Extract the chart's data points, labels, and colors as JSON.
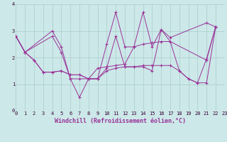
{
  "xlabel": "Windchill (Refroidissement éolien,°C)",
  "xlim": [
    0,
    23
  ],
  "ylim": [
    0,
    4
  ],
  "xticks": [
    0,
    1,
    2,
    3,
    4,
    5,
    6,
    7,
    8,
    9,
    10,
    11,
    12,
    13,
    14,
    15,
    16,
    17,
    18,
    19,
    20,
    21,
    22,
    23
  ],
  "yticks": [
    0,
    1,
    2,
    3,
    4
  ],
  "background_color": "#cce8e8",
  "grid_color": "#aacccc",
  "line_color": "#993399",
  "lines": [
    {
      "x": [
        0,
        1,
        4,
        5,
        6,
        7,
        8,
        9,
        10,
        11,
        12,
        13,
        14,
        15,
        16,
        17,
        21,
        22
      ],
      "y": [
        2.8,
        2.2,
        3.0,
        2.4,
        1.2,
        1.2,
        1.2,
        1.2,
        2.5,
        3.7,
        2.4,
        2.4,
        3.7,
        2.4,
        3.05,
        2.75,
        3.3,
        3.15
      ]
    },
    {
      "x": [
        0,
        1,
        4,
        5,
        6,
        7,
        8,
        9,
        10,
        11,
        12,
        13,
        14,
        15,
        16,
        17,
        21,
        22
      ],
      "y": [
        2.8,
        2.2,
        2.8,
        2.2,
        1.2,
        0.5,
        1.2,
        1.2,
        1.6,
        2.8,
        1.65,
        1.65,
        1.65,
        1.5,
        3.05,
        2.6,
        1.9,
        3.15
      ]
    },
    {
      "x": [
        0,
        1,
        2,
        3,
        4,
        5,
        6,
        7,
        8,
        9,
        10,
        11,
        12,
        13,
        14,
        15,
        16,
        17,
        18,
        19,
        20,
        21,
        22
      ],
      "y": [
        2.8,
        2.2,
        1.9,
        1.45,
        1.45,
        1.5,
        1.35,
        1.35,
        1.2,
        1.2,
        1.5,
        1.6,
        1.65,
        1.65,
        1.7,
        1.7,
        1.7,
        1.7,
        1.5,
        1.2,
        1.05,
        1.05,
        3.15
      ]
    },
    {
      "x": [
        0,
        1,
        2,
        3,
        4,
        5,
        6,
        7,
        8,
        9,
        10,
        11,
        12,
        13,
        14,
        15,
        16,
        17,
        18,
        19,
        20,
        21,
        22
      ],
      "y": [
        2.8,
        2.2,
        1.9,
        1.45,
        1.45,
        1.5,
        1.35,
        1.35,
        1.2,
        1.6,
        1.65,
        1.7,
        1.75,
        2.4,
        2.5,
        2.55,
        2.6,
        2.6,
        1.5,
        1.2,
        1.05,
        1.95,
        3.15
      ]
    }
  ],
  "tick_fontsize": 5.0,
  "label_fontsize": 6.0
}
